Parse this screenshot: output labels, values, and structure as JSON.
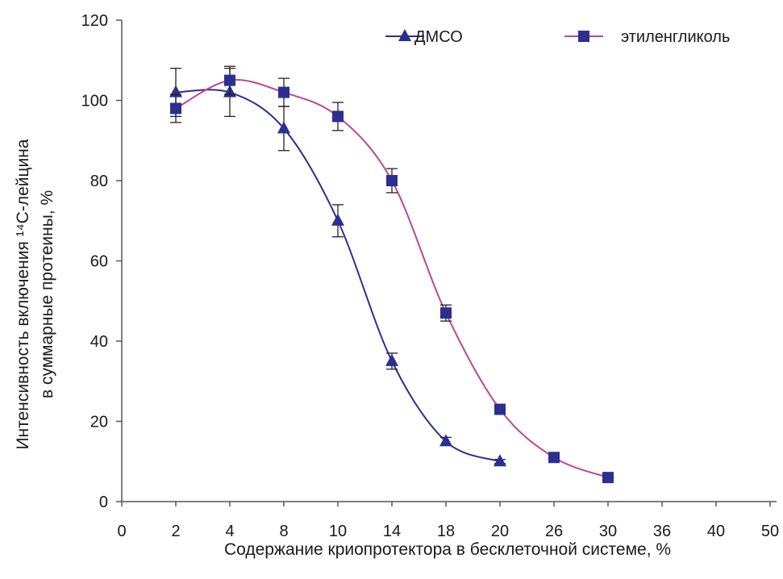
{
  "chart_data": {
    "type": "line",
    "title": "",
    "xlabel": "Содержание криопротектора в бесклеточной системе, %",
    "ylabel_line1": "Интенсивность включения ¹⁴С-лейцина",
    "ylabel_line2": "в суммарные протеины, %",
    "categories": [
      "0",
      "2",
      "4",
      "8",
      "10",
      "14",
      "18",
      "20",
      "26",
      "30",
      "36",
      "40",
      "50"
    ],
    "ylim": [
      0,
      120
    ],
    "yticks": [
      0,
      20,
      40,
      60,
      80,
      100,
      120
    ],
    "grid": false,
    "legend_position": "top",
    "series": [
      {
        "name": "ДМСО",
        "color": "#2b2f8f",
        "marker": "triangle",
        "values": [
          null,
          102,
          102,
          93,
          70,
          35,
          15,
          10,
          null,
          null,
          null,
          null,
          null
        ],
        "errors": [
          null,
          6,
          6,
          5.5,
          4,
          2,
          1,
          0.5,
          null,
          null,
          null,
          null,
          null
        ]
      },
      {
        "name": "этиленгликоль",
        "color": "#c0468a",
        "marker_color": "#2b2f8f",
        "marker": "square",
        "values": [
          null,
          98,
          105,
          102,
          96,
          80,
          47,
          23,
          11,
          6,
          null,
          null,
          null
        ],
        "errors": [
          null,
          3.5,
          3.5,
          3.5,
          3.5,
          3,
          2,
          0.5,
          0.5,
          0.5,
          null,
          null,
          null
        ]
      }
    ]
  }
}
